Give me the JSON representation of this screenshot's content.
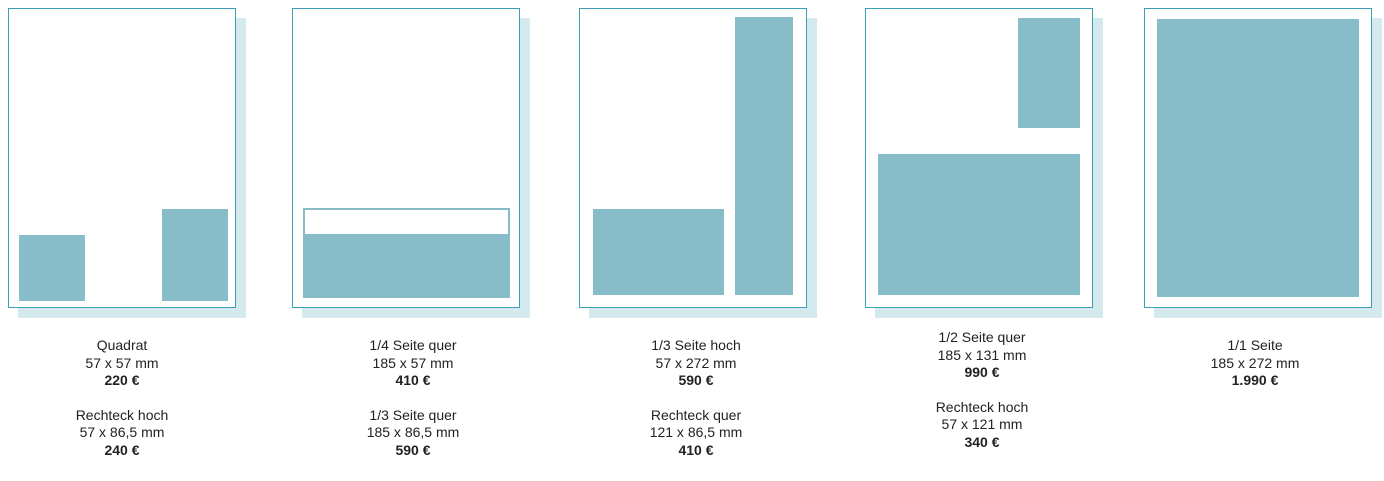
{
  "formats": [
    {
      "id": "c1",
      "items": [
        {
          "name": "Quadrat",
          "size": "57 x 57 mm",
          "price": "220 €"
        },
        {
          "name": "Rechteck hoch",
          "size": "57 x 86,5 mm",
          "price": "240 €"
        }
      ]
    },
    {
      "id": "c2",
      "items": [
        {
          "name": "1/4 Seite quer",
          "size": "185 x 57 mm",
          "price": "410 €"
        },
        {
          "name": "1/3 Seite quer",
          "size": "185 x 86,5 mm",
          "price": "590 €"
        }
      ]
    },
    {
      "id": "c3",
      "items": [
        {
          "name": "1/3 Seite hoch",
          "size": "57 x 272 mm",
          "price": "590 €"
        },
        {
          "name": "Rechteck quer",
          "size": "121 x 86,5 mm",
          "price": "410 €"
        }
      ]
    },
    {
      "id": "c4",
      "items": [
        {
          "name": "1/2 Seite quer",
          "size": "185 x 131 mm",
          "price": "990 €"
        },
        {
          "name": "Rechteck hoch",
          "size": "57 x 121 mm",
          "price": "340 €"
        }
      ]
    },
    {
      "id": "c5",
      "items": [
        {
          "name": "1/1 Seite",
          "size": "185 x 272 mm",
          "price": "1.990 €"
        }
      ]
    }
  ],
  "colors": {
    "ad_fill": "#87bdc8",
    "page_border": "#3aa0b5",
    "page_shadow": "#d3e9ee"
  }
}
